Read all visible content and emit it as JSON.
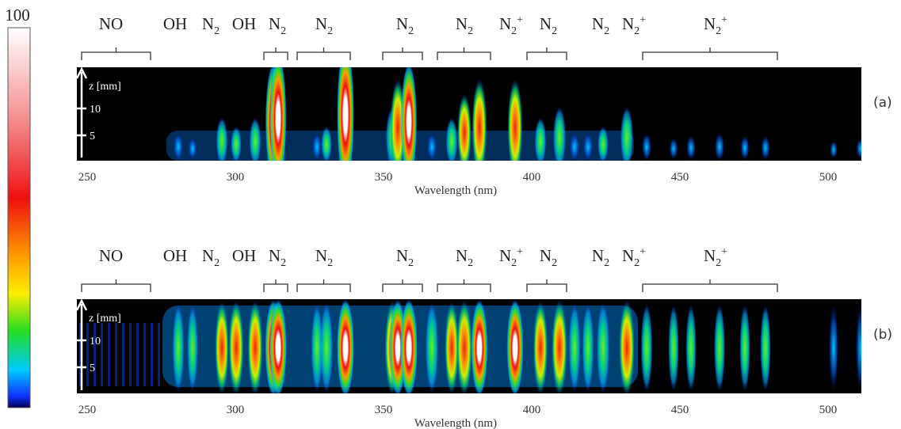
{
  "colorbar": {
    "max_label": "100"
  },
  "species_labels": [
    {
      "text": "NO"
    },
    {
      "text": "OH"
    },
    {
      "text": "N",
      "sub": "2"
    },
    {
      "text": "OH"
    },
    {
      "text": "N",
      "sub": "2"
    },
    {
      "text": "N",
      "sub": "2"
    },
    {
      "text": "N",
      "sub": "2"
    },
    {
      "text": "N",
      "sub": "2"
    },
    {
      "text": "N",
      "sub": "2",
      "sup": "+"
    },
    {
      "text": "N",
      "sub": "2"
    },
    {
      "text": "N",
      "sub": "2"
    },
    {
      "text": "N",
      "sub": "2",
      "sup": "+"
    },
    {
      "text": "N",
      "sub": "2",
      "sup": "+"
    }
  ],
  "panels": [
    {
      "label": "(a)",
      "z_axis": {
        "title": "z [mm]",
        "ticks": [
          "10",
          "5"
        ]
      },
      "x_axis": {
        "title": "Wavelength (nm)",
        "ticks": [
          250,
          300,
          350,
          400,
          450,
          500
        ]
      }
    },
    {
      "label": "(b)",
      "z_axis": {
        "title": "z [mm]",
        "ticks": [
          "10",
          "5"
        ]
      },
      "x_axis": {
        "title": "Wavelength (nm)",
        "ticks": [
          250,
          300,
          350,
          400,
          450,
          500
        ]
      }
    }
  ]
}
